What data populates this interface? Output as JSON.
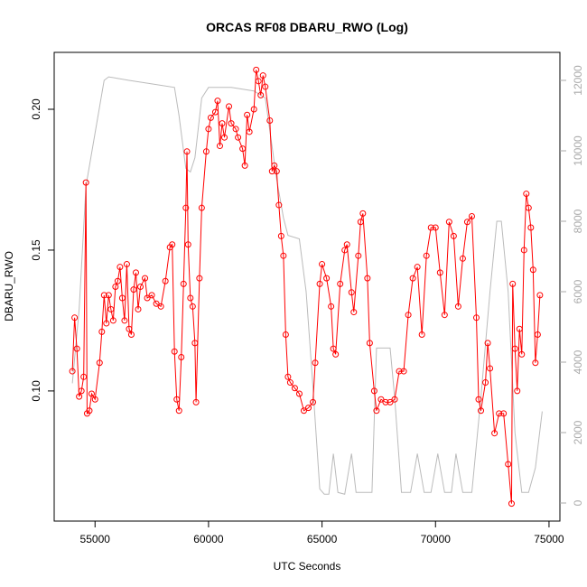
{
  "chart_data": {
    "type": "line",
    "title": "ORCAS RF08 DBARU_RWO (Log)",
    "xlabel": "UTC Seconds",
    "ylabel": "DBARU_RWO",
    "xlim": [
      53200,
      75480
    ],
    "xticks": [
      55000,
      60000,
      65000,
      70000,
      75000
    ],
    "ylim": [
      0.0538,
      0.2202
    ],
    "yticks": [
      {
        "value": 0.1,
        "label": "0.10"
      },
      0.15,
      {
        "value": 0.2,
        "label": "0.20"
      }
    ],
    "y2lim": [
      -513,
      12795
    ],
    "y2ticks": [
      0,
      2000,
      4000,
      6000,
      8000,
      10000,
      12000
    ],
    "series": [
      {
        "color": "#ff0000",
        "markers": true,
        "x": [
          54000,
          54100,
          54200,
          54300,
          54400,
          54500,
          54600,
          54650,
          54750,
          54850,
          55000,
          55200,
          55300,
          55400,
          55500,
          55600,
          55700,
          55800,
          55900,
          56000,
          56100,
          56200,
          56300,
          56400,
          56500,
          56600,
          56700,
          56800,
          56900,
          57000,
          57200,
          57300,
          57500,
          57700,
          57900,
          58100,
          58300,
          58400,
          58500,
          58600,
          58700,
          58800,
          58900,
          59000,
          59050,
          59100,
          59200,
          59300,
          59400,
          59450,
          59600,
          59700,
          59900,
          60000,
          60100,
          60300,
          60400,
          60500,
          60600,
          60700,
          60900,
          61000,
          61200,
          61300,
          61500,
          61600,
          61700,
          61800,
          62000,
          62100,
          62200,
          62300,
          62400,
          62500,
          62700,
          62800,
          62900,
          63000,
          63100,
          63200,
          63300,
          63400,
          63500,
          63600,
          63800,
          64000,
          64200,
          64400,
          64600,
          64700,
          64900,
          65000,
          65200,
          65400,
          65500,
          65600,
          65800,
          66000,
          66100,
          66300,
          66400,
          66600,
          66700,
          66800,
          67000,
          67100,
          67300,
          67400,
          67600,
          67800,
          68000,
          68200,
          68400,
          68600,
          68800,
          69000,
          69200,
          69400,
          69600,
          69800,
          70000,
          70200,
          70400,
          70600,
          70800,
          71000,
          71200,
          71400,
          71600,
          71800,
          71900,
          72000,
          72200,
          72300,
          72400,
          72600,
          72800,
          73000,
          73200,
          73350,
          73400,
          73500,
          73600,
          73700,
          73800,
          73900,
          74000,
          74100,
          74200,
          74300,
          74400,
          74500,
          74600
        ],
        "values": [
          0.107,
          0.126,
          0.115,
          0.098,
          0.1,
          0.105,
          0.174,
          0.092,
          0.093,
          0.099,
          0.097,
          0.11,
          0.121,
          0.134,
          0.124,
          0.134,
          0.129,
          0.125,
          0.137,
          0.139,
          0.144,
          0.133,
          0.125,
          0.145,
          0.122,
          0.12,
          0.136,
          0.142,
          0.129,
          0.137,
          0.14,
          0.133,
          0.134,
          0.131,
          0.13,
          0.139,
          0.151,
          0.152,
          0.114,
          0.097,
          0.093,
          0.112,
          0.138,
          0.165,
          0.185,
          0.152,
          0.133,
          0.13,
          0.117,
          0.096,
          0.14,
          0.165,
          0.185,
          0.193,
          0.197,
          0.199,
          0.203,
          0.187,
          0.195,
          0.19,
          0.201,
          0.195,
          0.193,
          0.19,
          0.186,
          0.18,
          0.198,
          0.192,
          0.2,
          0.214,
          0.21,
          0.205,
          0.212,
          0.208,
          0.196,
          0.178,
          0.18,
          0.178,
          0.166,
          0.155,
          0.148,
          0.12,
          0.105,
          0.103,
          0.101,
          0.099,
          0.093,
          0.094,
          0.096,
          0.11,
          0.138,
          0.145,
          0.14,
          0.13,
          0.115,
          0.113,
          0.138,
          0.15,
          0.152,
          0.135,
          0.128,
          0.148,
          0.16,
          0.163,
          0.14,
          0.117,
          0.1,
          0.093,
          0.097,
          0.096,
          0.096,
          0.097,
          0.107,
          0.107,
          0.127,
          0.14,
          0.144,
          0.12,
          0.148,
          0.158,
          0.158,
          0.142,
          0.127,
          0.16,
          0.155,
          0.13,
          0.147,
          0.16,
          0.162,
          0.126,
          0.097,
          0.093,
          0.103,
          0.117,
          0.108,
          0.085,
          0.092,
          0.092,
          0.074,
          0.06,
          0.138,
          0.115,
          0.1,
          0.122,
          0.113,
          0.15,
          0.17,
          0.165,
          0.158,
          0.143,
          0.11,
          0.12,
          0.134
        ]
      },
      {
        "color": "#bbbbbb",
        "axis": "y2",
        "markers": false,
        "x": [
          54000,
          54300,
          54600,
          55000,
          55400,
          55600,
          56500,
          57500,
          58500,
          58700,
          59000,
          59200,
          59400,
          59700,
          60000,
          61000,
          62000,
          62500,
          63000,
          63300,
          63500,
          64000,
          64300,
          64600,
          64900,
          65100,
          65300,
          65500,
          65700,
          66000,
          66300,
          66500,
          66800,
          67200,
          67400,
          68000,
          68200,
          68500,
          68900,
          69200,
          69500,
          69800,
          70100,
          70400,
          70700,
          70900,
          71200,
          71600,
          72000,
          72400,
          72700,
          72900,
          73200,
          73500,
          73800,
          74100,
          74400,
          74700
        ],
        "values": [
          3400,
          5500,
          9000,
          10500,
          12000,
          12100,
          12000,
          11900,
          11800,
          11000,
          9500,
          9400,
          9800,
          11500,
          11800,
          11800,
          11700,
          11500,
          9200,
          8100,
          7600,
          7500,
          6000,
          3300,
          400,
          250,
          250,
          1400,
          300,
          250,
          1400,
          300,
          300,
          300,
          4400,
          4400,
          3000,
          300,
          300,
          1400,
          300,
          300,
          1400,
          300,
          300,
          1400,
          300,
          300,
          3000,
          6000,
          8000,
          8000,
          6000,
          2000,
          300,
          300,
          1000,
          2600
        ]
      }
    ]
  }
}
